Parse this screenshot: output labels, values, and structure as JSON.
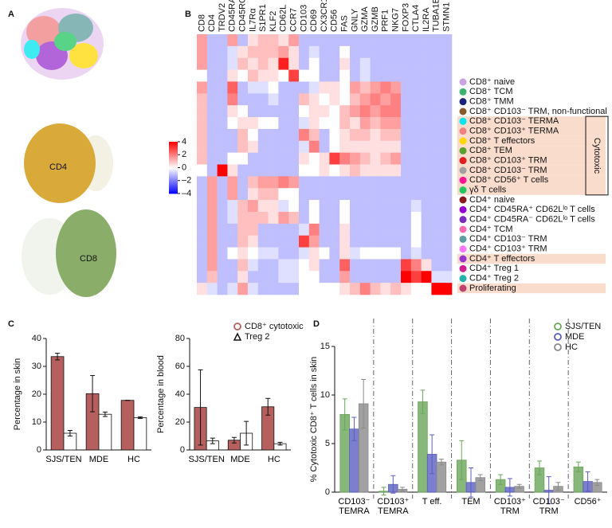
{
  "panel_labels": [
    "A",
    "B",
    "C",
    "D"
  ],
  "umap_labels": [
    "CD4",
    "CD8"
  ],
  "chart_data": [
    {
      "type": "heatmap",
      "x": [
        "CD8",
        "CD4",
        "TRDV2",
        "CD45RA",
        "CD45RO",
        "IL7Rα",
        "S1PR1",
        "KLF2",
        "CD62L",
        "CCR7",
        "CD103",
        "CD69",
        "CX3CR1",
        "CD56",
        "FAS",
        "GNLY",
        "GZMA",
        "GZMB",
        "PRF1",
        "NKG7",
        "FOXP3",
        "CTLA4",
        "IL2RA",
        "TUBA1B",
        "STMN1"
      ],
      "y": [
        "CD8⁺ naive",
        "CD8⁺ TCM",
        "CD8⁺ TMM",
        "CD8⁺ CD103⁻ TRM, non-functional",
        "CD8⁺ CD103⁻ TERMA",
        "CD8⁺ CD103⁺ TERMA",
        "CD8⁺ T effectors",
        "CD8⁺ TEM",
        "CD8⁺ CD103⁺ TRM",
        "CD8⁺ CD103⁻ TRM",
        "CD8⁺ CD56⁺ T cells",
        "γδ T cells",
        "CD4⁺ naive",
        "CD4⁺ CD45RA⁺ CD62Lˡᵒ T cells",
        "CD4⁺ CD45RA⁻ CD62Lˡᵒ T cells",
        "CD4⁺ TCM",
        "CD4⁺ CD103⁻ TRM",
        "CD4⁺ CD103⁺ TRM",
        "CD4⁺ T effectors",
        "CD4⁺ Treg 1",
        "CD4⁺ Treg 2",
        "Proliferating"
      ],
      "row_colors": [
        "#c9a3e3",
        "#3cb371",
        "#1a237e",
        "#8b5a2b",
        "#00e5ee",
        "#f08080",
        "#ffd700",
        "#5aa02c",
        "#e02020",
        "#a0a0a0",
        "#ff1493",
        "#22c55e",
        "#8b1a1a",
        "#9400d3",
        "#7b2cbf",
        "#ff69b4",
        "#5f9ea0",
        "#ff77ff",
        "#9932cc",
        "#d02090",
        "#20b2aa",
        "#c04070"
      ],
      "highlight": [
        false,
        false,
        false,
        false,
        true,
        true,
        true,
        true,
        true,
        true,
        true,
        true,
        false,
        false,
        false,
        false,
        false,
        false,
        true,
        false,
        false,
        true
      ],
      "annotation": "Cytotoxic",
      "values": [
        [
          1.5,
          -1,
          -1,
          1.5,
          -1,
          0.5,
          1,
          1,
          0.5,
          1.5,
          -1,
          -1,
          -1,
          -1,
          -1,
          -1,
          -1,
          -1,
          -1,
          -1,
          -1,
          -1,
          -1,
          -1,
          -1
        ],
        [
          1.5,
          -1,
          -1,
          -0.5,
          0.5,
          1,
          1,
          1,
          1.5,
          0.5,
          -1,
          -0.5,
          -1,
          -1,
          0,
          -1,
          -1,
          -1,
          -1,
          -1,
          -1,
          -1,
          -1,
          -1,
          -1
        ],
        [
          1.5,
          -1,
          -1,
          -0.5,
          1,
          0.5,
          1,
          0.5,
          3.5,
          0.5,
          -1,
          0,
          -1,
          -1,
          0.5,
          -1,
          -0.5,
          -1,
          -1,
          -1,
          -1,
          -1,
          -1,
          -1,
          -1
        ],
        [
          0,
          -1,
          -1,
          0.5,
          0,
          1,
          0.5,
          0.5,
          0,
          3,
          0,
          0,
          -1,
          -1,
          0,
          -1,
          -0.5,
          -1,
          -1,
          -1,
          -1,
          -1,
          -1,
          -1,
          -1
        ],
        [
          1.5,
          -1,
          -1,
          2.5,
          -1,
          -0.5,
          -0.5,
          0,
          -1,
          -1,
          -1,
          -0.5,
          0.5,
          0.5,
          0,
          1.5,
          1,
          1.5,
          2,
          1.5,
          -1,
          -1,
          -1,
          -1,
          -1
        ],
        [
          1,
          -1,
          -1,
          2,
          -1,
          -1,
          -1,
          -0.5,
          -1,
          -1,
          1,
          0.5,
          0,
          0.5,
          0,
          1,
          1.5,
          2,
          1.5,
          2,
          -1,
          -1,
          -1,
          -1,
          -1
        ],
        [
          1,
          -1,
          -1,
          0.5,
          0,
          -1,
          -1,
          -1,
          -1,
          -1,
          0,
          0.5,
          0.5,
          0,
          1,
          1.5,
          2,
          1.5,
          2,
          2,
          -1,
          -1,
          -1,
          -1,
          -1
        ],
        [
          1,
          -1,
          -1,
          0,
          0.5,
          0.5,
          0,
          0,
          -1,
          -1,
          -0.5,
          0.5,
          0,
          0,
          1,
          0.5,
          1.5,
          1,
          1.5,
          1.5,
          -1,
          -1,
          -1,
          -1,
          -1
        ],
        [
          1,
          -1,
          -1,
          -1,
          1,
          0,
          -1,
          -1,
          -1,
          -1,
          2,
          1,
          -1,
          0,
          0.5,
          1,
          1,
          0.5,
          1,
          1,
          -1,
          -1,
          -1,
          -1,
          -1
        ],
        [
          1,
          -1,
          -1,
          -1,
          1,
          0.5,
          -1,
          -1,
          -1,
          -1,
          -0.5,
          2,
          -1,
          0,
          0.5,
          0.5,
          0.5,
          0.5,
          0.5,
          0.5,
          -1,
          -1,
          -1,
          -1,
          -1
        ],
        [
          1,
          -1,
          -1,
          0,
          0,
          -1,
          -1,
          -1,
          -1,
          -1,
          0.5,
          0,
          0.5,
          3,
          2,
          1.5,
          1,
          0.5,
          1,
          1.5,
          -1,
          -1,
          -1,
          -1,
          -1
        ],
        [
          0,
          -1,
          4,
          0.5,
          -1,
          -1,
          -1,
          -1,
          -1,
          -1,
          0,
          0,
          0.5,
          0,
          0.5,
          1,
          0.5,
          0.5,
          0.5,
          0.5,
          -1,
          -1,
          -1,
          -1,
          -1
        ],
        [
          -1,
          1.5,
          -1,
          1.5,
          -1,
          1,
          1.5,
          1.5,
          2,
          1.5,
          -1,
          -1,
          -1,
          -1,
          -1,
          -1,
          -1,
          -1,
          -1,
          -1,
          -1,
          -1,
          -1,
          -1,
          -1
        ],
        [
          -1,
          1.5,
          -1,
          1.5,
          -1,
          0.5,
          1,
          1,
          0,
          0,
          -1,
          -1,
          -1,
          -1,
          -1,
          -1,
          -1,
          -1,
          -1,
          -1,
          -1,
          -1,
          -1,
          -1,
          -1
        ],
        [
          -1,
          1.5,
          -1,
          -0.5,
          1,
          1.5,
          0.5,
          0.5,
          -0.5,
          0,
          -1,
          0,
          -1,
          -1,
          0,
          -1,
          -1,
          -1,
          -1,
          -1,
          -1,
          -0.5,
          -1,
          -1,
          -1
        ],
        [
          -1,
          1.5,
          -1,
          -0.5,
          1,
          1,
          1,
          0.5,
          1.5,
          1,
          -1,
          0,
          -1,
          -1,
          0,
          -1,
          -1,
          -1,
          -1,
          -1,
          -1,
          0,
          -1,
          -1,
          -1
        ],
        [
          -1,
          1.5,
          -1,
          -1,
          1,
          1,
          -1,
          -1,
          -1,
          -1,
          -0.5,
          2,
          -1,
          -1,
          0.5,
          -1,
          -1,
          -1,
          -1,
          -1,
          -1,
          0,
          -1,
          -1,
          -1
        ],
        [
          -1,
          1.5,
          -1,
          -1,
          1,
          0.5,
          -1,
          -1,
          -1,
          -1,
          3,
          1.5,
          -1,
          -1,
          0.5,
          -1,
          -1,
          -1,
          -1,
          -1,
          -1,
          0,
          -1,
          -1,
          -1
        ],
        [
          -1,
          1.5,
          -1,
          0,
          0.5,
          0,
          -0.5,
          -0.5,
          -1,
          -1,
          -0.5,
          0.5,
          0,
          -1,
          0.5,
          -0.5,
          0,
          0,
          0,
          0,
          -1,
          -0.5,
          -1,
          -1,
          -1
        ],
        [
          -1,
          1.5,
          -1,
          -1,
          1,
          -0.5,
          -1,
          -1,
          -0.5,
          -0.5,
          0,
          0.5,
          -1,
          -1,
          2.5,
          -1,
          -1,
          -1,
          -1,
          -1,
          3,
          2,
          0.5,
          -1,
          -1
        ],
        [
          -1,
          1,
          -1,
          -1,
          0.5,
          -1,
          -1,
          -1,
          -0.5,
          -0.5,
          0,
          0,
          -1,
          -1,
          1.5,
          -1,
          -1,
          -1,
          -1,
          -1,
          4,
          3,
          4,
          -0.5,
          -0.5
        ],
        [
          0.5,
          -0.5,
          -1,
          -0.5,
          1.5,
          -0.5,
          -1,
          -1,
          -1,
          -1,
          0,
          0,
          0,
          0,
          0.5,
          1,
          2,
          1,
          0.5,
          1,
          0.5,
          0,
          0,
          4,
          4
        ]
      ],
      "colorbar": {
        "lim": [
          -4,
          4
        ],
        "ticks": [
          4,
          2,
          0,
          {
            "value": -2,
            "label": "–2"
          },
          {
            "value": -4,
            "label": "–4"
          }
        ]
      }
    },
    {
      "type": "bar",
      "ylabel": "Percentage in skin",
      "categories": [
        "SJS/TEN",
        "MDE",
        "HC"
      ],
      "series": [
        {
          "name": "CD8⁺ cytotoxic",
          "color": "#b5605f",
          "values": [
            33.5,
            20.2,
            17.8
          ],
          "errors": [
            1.2,
            6.5,
            0
          ]
        },
        {
          "name": "Treg 2",
          "color": "#ffffff",
          "values": [
            6,
            12.8,
            11.6
          ],
          "errors": [
            1,
            0.8,
            0.3
          ]
        }
      ],
      "ylim": [
        0,
        40
      ],
      "yticks": [
        0,
        10,
        20,
        30,
        40
      ]
    },
    {
      "type": "bar",
      "ylabel": "Percentage in blood",
      "categories": [
        "SJS/TEN",
        "MDE",
        "HC"
      ],
      "series": [
        {
          "name": "CD8⁺ cytotoxic",
          "color": "#b5605f",
          "values": [
            30.5,
            7,
            31
          ],
          "errors": [
            27,
            2,
            6
          ]
        },
        {
          "name": "Treg 2",
          "color": "#ffffff",
          "values": [
            6.5,
            12,
            4.5
          ],
          "errors": [
            2,
            8.5,
            1
          ]
        }
      ],
      "ylim": [
        0,
        80
      ],
      "yticks": [
        0,
        20,
        40,
        60,
        80
      ],
      "legend": "top-right"
    },
    {
      "type": "bar",
      "ylabel": "% Cytotoxic CD8⁺ T cells in skin",
      "categories": [
        "CD103⁻\nTEMRA",
        "CD103⁺\nTEMRA",
        "T eff.",
        "TEM",
        "CD103⁺\nTRM",
        "CD103⁻\nTRM",
        "CD56⁺"
      ],
      "series": [
        {
          "name": "SJS/TEN",
          "color": "#6aa55a",
          "values": [
            8,
            0.1,
            9.3,
            3.3,
            1.3,
            2.5,
            2.6
          ],
          "errors": [
            1.6,
            0.4,
            1.2,
            2,
            0.5,
            0.7,
            0.5
          ]
        },
        {
          "name": "MDE",
          "color": "#5a5fc0",
          "values": [
            6.5,
            0.8,
            3.9,
            1,
            0.5,
            0.2,
            1.1
          ],
          "errors": [
            1.2,
            0.9,
            2,
            1.5,
            0.9,
            1.4,
            1
          ]
        },
        {
          "name": "HC",
          "color": "#8a8a8a",
          "values": [
            9.1,
            0.3,
            3.1,
            1.5,
            0.6,
            0.6,
            1
          ],
          "errors": [
            2.5,
            0.2,
            0.3,
            0.3,
            0.2,
            0.4,
            0.3
          ]
        }
      ],
      "ylim": [
        0,
        15
      ],
      "yticks": [
        0,
        5,
        10,
        15
      ],
      "legend": "top-right"
    }
  ]
}
